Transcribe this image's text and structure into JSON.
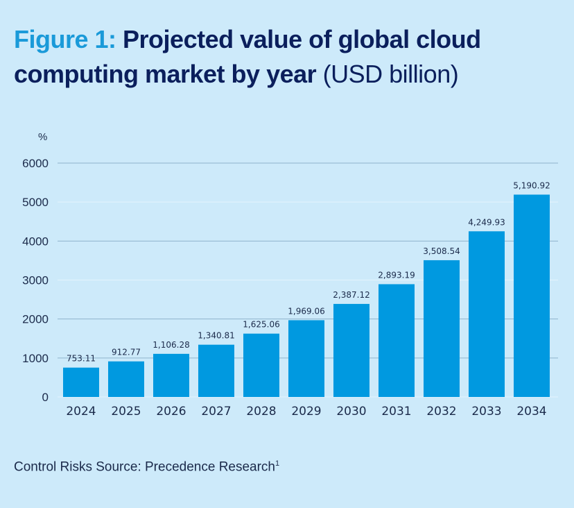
{
  "title": {
    "prefix": "Figure 1:",
    "main": "Projected value of global cloud computing market by year",
    "unit": "(USD billion)"
  },
  "source": {
    "text": "Control Risks Source: Precedence Research",
    "footnote": "1"
  },
  "colors": {
    "bar": "#0099e0",
    "background": "#cdeafa",
    "title": "#0b1f5c",
    "title_prefix": "#1a9ad9"
  },
  "chart_data": {
    "type": "bar",
    "title": "Figure 1: Projected value of global cloud computing market by year (USD billion)",
    "ylabel": "%",
    "xlabel": "",
    "categories": [
      "2024",
      "2025",
      "2026",
      "2027",
      "2028",
      "2029",
      "2030",
      "2031",
      "2032",
      "2033",
      "2034"
    ],
    "values": [
      753.11,
      912.77,
      1106.28,
      1340.81,
      1625.06,
      1969.06,
      2387.12,
      2893.19,
      3508.54,
      4249.93,
      5190.92
    ],
    "data_labels": [
      "753.11",
      "912.77",
      "1,106.28",
      "1,340.81",
      "1,625.06",
      "1,969.06",
      "2,387.12",
      "2,893.19",
      "3,508.54",
      "4,249.93",
      "5,190.92"
    ],
    "yticks": [
      0,
      1000,
      2000,
      3000,
      4000,
      5000,
      6000
    ],
    "ylim": [
      0,
      6000
    ],
    "grid": true,
    "legend": "none"
  }
}
